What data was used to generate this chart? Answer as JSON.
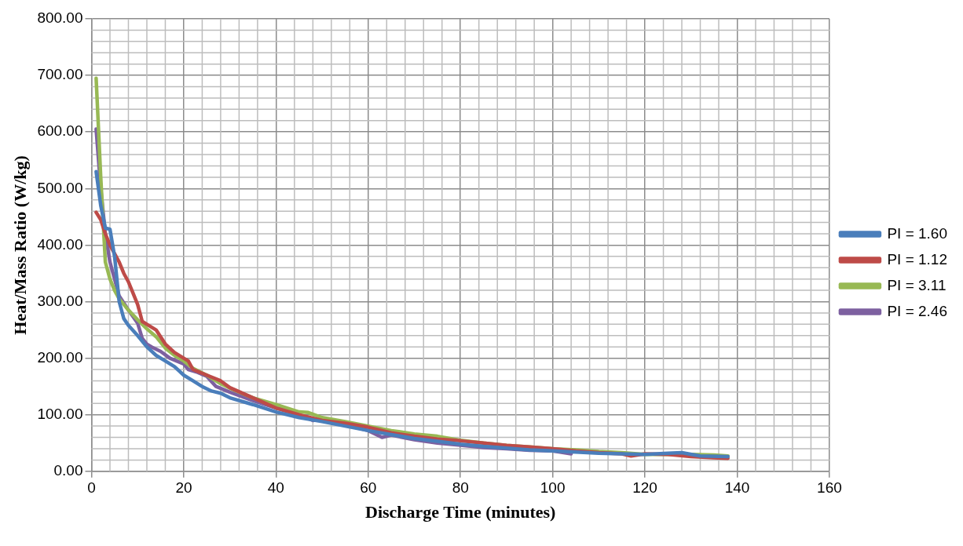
{
  "chart_data": {
    "type": "line",
    "xlabel": "Discharge Time (minutes)",
    "ylabel": "Heat/Mass Ratio (W/kg)",
    "xlim": [
      0,
      160
    ],
    "xticks": [
      0,
      20,
      40,
      60,
      80,
      100,
      120,
      140,
      160
    ],
    "ylim": [
      0,
      800
    ],
    "yticks": [
      {
        "value": 0,
        "label": "0.00"
      },
      {
        "value": 100,
        "label": "100.00"
      },
      {
        "value": 200,
        "label": "200.00"
      },
      {
        "value": 300,
        "label": "300.00"
      },
      {
        "value": 400,
        "label": "400.00"
      },
      {
        "value": 500,
        "label": "500.00"
      },
      {
        "value": 600,
        "label": "600.00"
      },
      {
        "value": 700,
        "label": "700.00"
      },
      {
        "value": 800,
        "label": "800.00"
      }
    ],
    "grid": true,
    "legend": "right",
    "marker": "none",
    "line_style": "solid",
    "series": [
      {
        "name": "PI = 1.60",
        "color": "#4a7ebb",
        "x": [
          1,
          2,
          3,
          4,
          5,
          6,
          7,
          8,
          10,
          12,
          14,
          16,
          18,
          20,
          22,
          24,
          26,
          28,
          30,
          35,
          40,
          45,
          50,
          55,
          60,
          65,
          70,
          75,
          80,
          85,
          90,
          95,
          100,
          105,
          110,
          115,
          120,
          125,
          128,
          132,
          138
        ],
        "values": [
          530,
          470,
          430,
          428,
          380,
          300,
          270,
          258,
          240,
          220,
          205,
          195,
          185,
          170,
          160,
          150,
          142,
          138,
          130,
          118,
          105,
          95,
          88,
          80,
          72,
          65,
          58,
          53,
          48,
          44,
          41,
          38,
          36,
          34,
          32,
          31,
          30,
          32,
          33,
          27,
          26
        ]
      },
      {
        "name": "PI = 1.12",
        "color": "#be4b48",
        "x": [
          1,
          2,
          3,
          4,
          5,
          6,
          7,
          8,
          9,
          10,
          11,
          12,
          14,
          16,
          18,
          20,
          21,
          22,
          25,
          28,
          30,
          35,
          40,
          45,
          50,
          55,
          60,
          65,
          70,
          75,
          80,
          85,
          90,
          95,
          100,
          105,
          110,
          115,
          117,
          120,
          125,
          130,
          135,
          138
        ],
        "values": [
          458,
          445,
          420,
          400,
          385,
          370,
          350,
          335,
          315,
          295,
          265,
          260,
          250,
          225,
          210,
          200,
          195,
          180,
          170,
          160,
          148,
          130,
          112,
          100,
          90,
          85,
          78,
          68,
          62,
          57,
          54,
          50,
          46,
          43,
          40,
          36,
          33,
          31,
          27,
          31,
          30,
          26,
          24,
          23
        ]
      },
      {
        "name": "PI = 3.11",
        "color": "#98b954",
        "x": [
          1,
          2,
          3,
          4,
          5,
          6,
          8,
          10,
          12,
          14,
          16,
          18,
          20,
          22,
          25,
          28,
          30,
          35,
          40,
          45,
          47,
          50,
          55,
          60,
          65,
          70,
          75,
          80,
          85,
          90,
          95,
          100,
          105,
          110,
          115,
          120,
          125,
          130,
          135,
          138
        ],
        "values": [
          695,
          520,
          370,
          340,
          320,
          305,
          285,
          268,
          252,
          238,
          218,
          205,
          195,
          182,
          170,
          155,
          147,
          130,
          118,
          105,
          104,
          95,
          88,
          80,
          72,
          66,
          62,
          55,
          50,
          46,
          43,
          40,
          38,
          35,
          33,
          30,
          30,
          30,
          29,
          27
        ]
      },
      {
        "name": "PI = 2.46",
        "color": "#7d60a0",
        "x": [
          1,
          2,
          3,
          4,
          5,
          6,
          8,
          10,
          11,
          12,
          13,
          15,
          17,
          20,
          21,
          23,
          25,
          27,
          30,
          35,
          40,
          45,
          48,
          50,
          55,
          60,
          63,
          65,
          70,
          75,
          80,
          85,
          90,
          95,
          100,
          104
        ],
        "values": [
          605,
          500,
          420,
          370,
          340,
          310,
          285,
          262,
          235,
          225,
          220,
          212,
          200,
          190,
          180,
          175,
          168,
          150,
          140,
          125,
          112,
          100,
          90,
          92,
          82,
          72,
          60,
          64,
          56,
          50,
          46,
          42,
          40,
          37,
          36,
          31
        ]
      }
    ]
  }
}
